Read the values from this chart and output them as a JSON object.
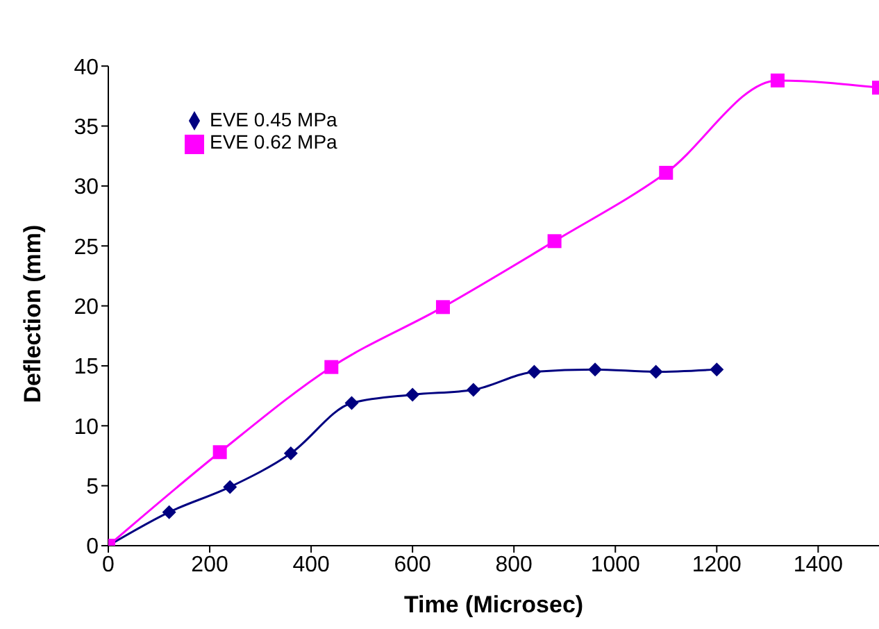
{
  "chart_data": {
    "type": "line",
    "xlabel": "Time (Microsec)",
    "ylabel": "Deflection (mm)",
    "xlim": [
      0,
      1520
    ],
    "xticks": [
      0,
      200,
      400,
      600,
      800,
      1000,
      1200,
      1400
    ],
    "ylim": [
      0,
      40
    ],
    "yticks": [
      0,
      5,
      10,
      15,
      20,
      25,
      30,
      35,
      40
    ],
    "grid": false,
    "legend": "top left",
    "series": [
      {
        "name": "EVE 0.45 MPa",
        "color": "#000080",
        "marker": "diamond",
        "x": [
          0,
          120,
          240,
          360,
          480,
          600,
          720,
          840,
          960,
          1080,
          1200
        ],
        "values": [
          0,
          2.8,
          4.9,
          7.7,
          11.9,
          12.6,
          13.0,
          14.5,
          14.7,
          14.5,
          14.7
        ]
      },
      {
        "name": "EVE 0.62 MPa",
        "color": "#ff00ff",
        "marker": "square",
        "x": [
          0,
          220,
          440,
          660,
          880,
          1100,
          1320,
          1520
        ],
        "values": [
          0,
          7.8,
          14.9,
          19.9,
          25.4,
          31.1,
          38.8,
          38.2
        ]
      }
    ]
  }
}
